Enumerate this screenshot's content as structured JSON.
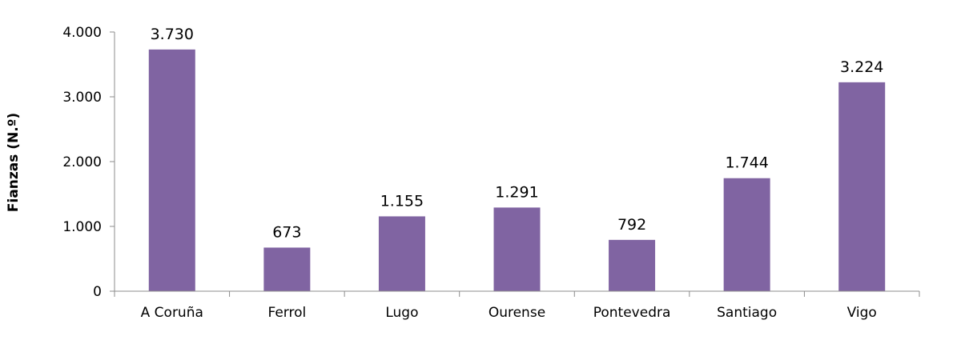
{
  "chart_data": {
    "type": "bar",
    "categories": [
      "A Coruña",
      "Ferrol",
      "Lugo",
      "Ourense",
      "Pontevedra",
      "Santiago",
      "Vigo"
    ],
    "values": [
      3730,
      673,
      1155,
      1291,
      792,
      1744,
      3224
    ],
    "value_labels": [
      "3.730",
      "673",
      "1.155",
      "1.291",
      "792",
      "1.744",
      "3.224"
    ],
    "ylabel": "Fianzas (N.º)",
    "ylim": [
      0,
      4000
    ],
    "y_ticks": [
      0,
      1000,
      2000,
      3000,
      4000
    ],
    "y_tick_labels": [
      "0",
      "1.000",
      "2.000",
      "3.000",
      "4.000"
    ],
    "grid": false,
    "bar_color": "#8064a2"
  }
}
